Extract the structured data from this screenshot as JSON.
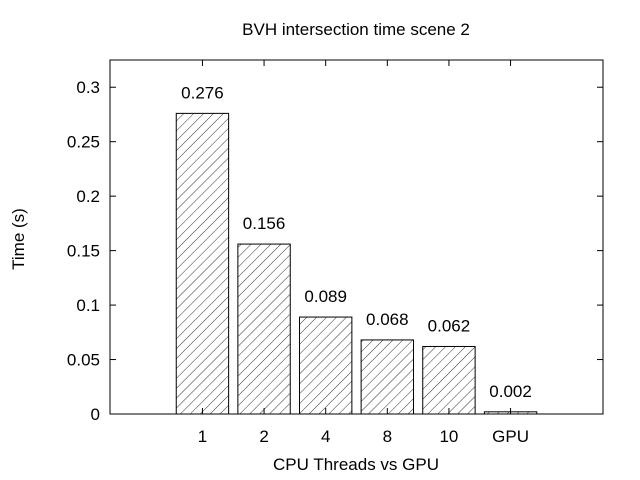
{
  "chart_data": {
    "type": "bar",
    "title": "BVH intersection time scene 2",
    "xlabel": "CPU Threads vs GPU",
    "ylabel": "Time (s)",
    "categories": [
      "1",
      "2",
      "4",
      "8",
      "10",
      "GPU"
    ],
    "values": [
      0.276,
      0.156,
      0.089,
      0.068,
      0.062,
      0.002
    ],
    "value_labels": [
      "0.276",
      "0.156",
      "0.089",
      "0.068",
      "0.062",
      "0.002"
    ],
    "ylim": [
      0,
      0.325
    ],
    "yticks": [
      0,
      0.05,
      0.1,
      0.15,
      0.2,
      0.25,
      0.3
    ],
    "ytick_labels": [
      "0",
      "0.05",
      "0.1",
      "0.15",
      "0.2",
      "0.25",
      "0.3"
    ],
    "xlim": [
      -1.5,
      6.5
    ],
    "grid": false,
    "legend": "none",
    "bar_fill": "diagonal-hatch",
    "colors": {
      "bar_stroke": "#000000",
      "hatch": "#000000",
      "background": "#ffffff"
    }
  }
}
